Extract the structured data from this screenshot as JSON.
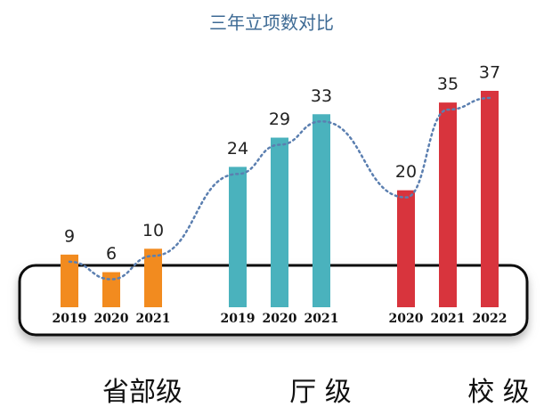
{
  "chart_data": {
    "type": "bar",
    "title": "三年立项数对比",
    "groups": [
      {
        "name": "省部级",
        "categories": [
          "2019",
          "2020",
          "2021"
        ],
        "values": [
          9,
          6,
          10
        ],
        "color": "#f28b1f"
      },
      {
        "name": "厅 级",
        "categories": [
          "2019",
          "2020",
          "2021"
        ],
        "values": [
          24,
          29,
          33
        ],
        "color": "#4ab2bd"
      },
      {
        "name": "校 级",
        "categories": [
          "2020",
          "2021",
          "2022"
        ],
        "values": [
          20,
          35,
          37
        ],
        "color": "#d8343d"
      }
    ]
  }
}
